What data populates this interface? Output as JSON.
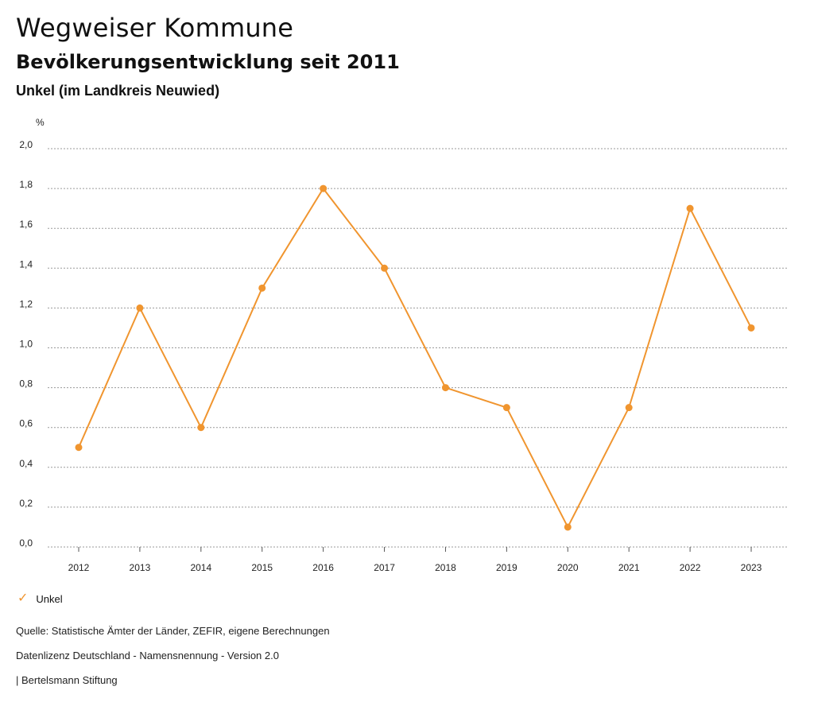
{
  "header": {
    "title": "Wegweiser Kommune",
    "subtitle": "Bevölkerungsentwicklung seit 2011",
    "region": "Unkel (im Landkreis Neuwied)"
  },
  "chart_data": {
    "type": "line",
    "title": "Bevölkerungsentwicklung seit 2011",
    "xlabel": "",
    "ylabel": "%",
    "x": [
      "2012",
      "2013",
      "2014",
      "2015",
      "2016",
      "2017",
      "2018",
      "2019",
      "2020",
      "2021",
      "2022",
      "2023"
    ],
    "ylim": [
      0,
      2.0
    ],
    "yticks": [
      "0,0",
      "0,2",
      "0,4",
      "0,6",
      "0,8",
      "1,0",
      "1,2",
      "1,4",
      "1,6",
      "1,8",
      "2,0"
    ],
    "grid": true,
    "legend_position": "bottom-left",
    "series": [
      {
        "name": "Unkel",
        "color": "#f0952f",
        "values": [
          0.5,
          1.2,
          0.6,
          1.3,
          1.8,
          1.4,
          0.8,
          0.7,
          0.1,
          0.7,
          1.7,
          1.1
        ]
      }
    ]
  },
  "legend": {
    "label": "Unkel",
    "icon": "check-icon"
  },
  "footer": {
    "source": "Quelle: Statistische Ämter der Länder, ZEFIR, eigene Berechnungen",
    "license": "Datenlizenz Deutschland - Namensnennung - Version 2.0",
    "publisher": "| Bertelsmann Stiftung"
  }
}
